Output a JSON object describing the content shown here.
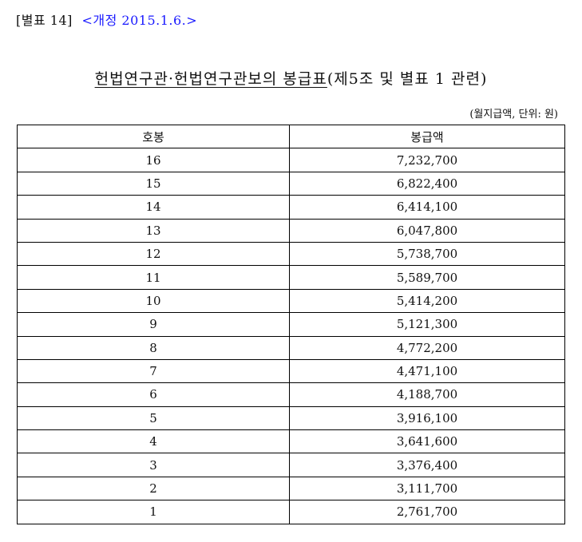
{
  "reference": {
    "label": "[별표 14]",
    "amendment": "<개정 2015.1.6.>"
  },
  "title": {
    "main": "헌법연구관·헌법연구관보의 봉급표",
    "suffix": "(제5조 및 별표 1 관련)"
  },
  "unit_note": "(월지급액, 단위: 원)",
  "table": {
    "headers": [
      "호봉",
      "봉급액"
    ],
    "rows": [
      [
        "16",
        "7,232,700"
      ],
      [
        "15",
        "6,822,400"
      ],
      [
        "14",
        "6,414,100"
      ],
      [
        "13",
        "6,047,800"
      ],
      [
        "12",
        "5,738,700"
      ],
      [
        "11",
        "5,589,700"
      ],
      [
        "10",
        "5,414,200"
      ],
      [
        "9",
        "5,121,300"
      ],
      [
        "8",
        "4,772,200"
      ],
      [
        "7",
        "4,471,100"
      ],
      [
        "6",
        "4,188,700"
      ],
      [
        "5",
        "3,916,100"
      ],
      [
        "4",
        "3,641,600"
      ],
      [
        "3",
        "3,376,400"
      ],
      [
        "2",
        "3,111,700"
      ],
      [
        "1",
        "2,761,700"
      ]
    ]
  }
}
